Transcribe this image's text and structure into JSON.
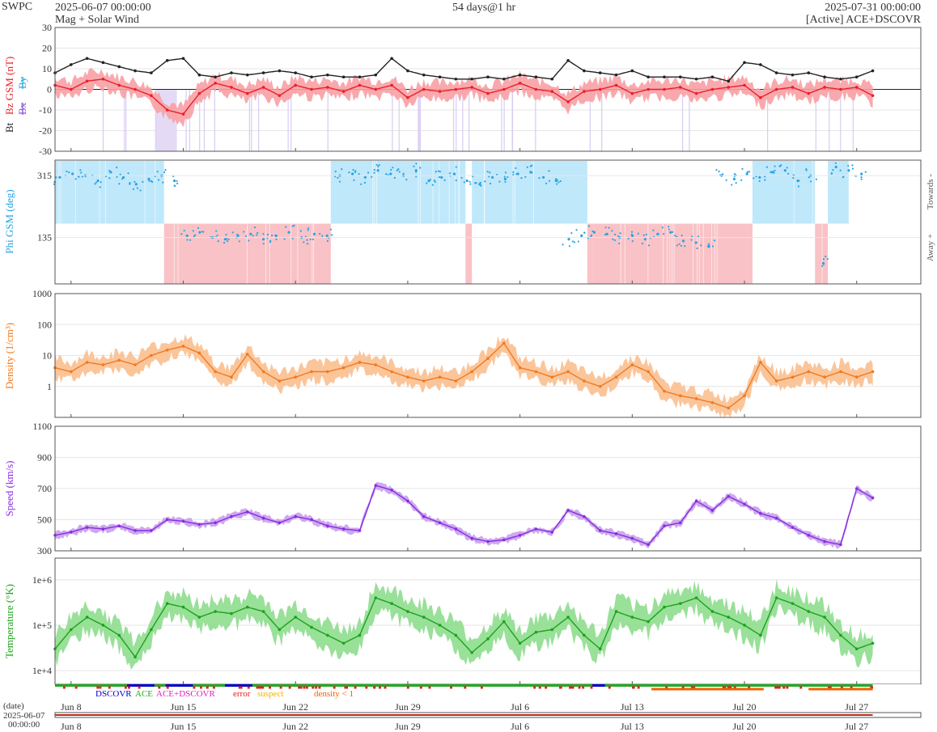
{
  "header": {
    "org": "SWPC",
    "start_time": "2025-06-07 00:00:00",
    "subtitle": "Mag + Solar Wind",
    "span": "54 days@1 hr",
    "end_time": "2025-07-31 00:00:00",
    "source": "[Active] ACE+DSCOVR"
  },
  "colors": {
    "bt": "#222222",
    "bz": "#e8202a",
    "bz_fill": "#f8a0a4",
    "bx": "#8a4fd6",
    "by": "#29a8e0",
    "phi_toward": "#bfe8fb",
    "phi_away": "#f9c2c6",
    "phi_points": "#2aa3e3",
    "density": "#f07a20",
    "density_fill": "#fbbf8f",
    "speed": "#8a2be2",
    "speed_fill": "#c8a0ee",
    "temperature": "#1aa31a",
    "temperature_fill": "#8edd8e",
    "dscovr": "#0000cc",
    "ace": "#22aa22",
    "ace_dscovr": "#e020c0",
    "error": "#e02020",
    "suspect": "#f0b000",
    "density_lt1": "#f06000"
  },
  "chart_data": [
    {
      "type": "line",
      "panel": "mag",
      "ylabel_parts": [
        "Bt",
        "Bz GSM (nT)",
        "Bx",
        "By"
      ],
      "ylim": [
        -30,
        30
      ],
      "yticks": [
        -30,
        -20,
        -10,
        0,
        10,
        20,
        30
      ],
      "x_days": [
        0,
        1,
        2,
        3,
        4,
        5,
        6,
        7,
        8,
        9,
        10,
        11,
        12,
        13,
        14,
        15,
        16,
        17,
        18,
        19,
        20,
        21,
        22,
        23,
        24,
        25,
        26,
        27,
        28,
        29,
        30,
        31,
        32,
        33,
        34,
        35,
        36,
        37,
        38,
        39,
        40,
        41,
        42,
        43,
        44,
        45,
        46,
        47,
        48,
        49,
        50,
        51
      ],
      "series": [
        {
          "name": "Bt",
          "values": [
            8,
            12,
            15,
            13,
            11,
            9,
            8,
            14,
            15,
            7,
            6,
            8,
            7,
            8,
            9,
            8,
            6,
            7,
            6,
            6,
            7,
            15,
            9,
            7,
            6,
            5,
            5,
            6,
            5,
            7,
            6,
            5,
            14,
            9,
            8,
            7,
            9,
            6,
            6,
            6,
            5,
            6,
            4,
            13,
            12,
            8,
            7,
            8,
            6,
            5,
            6,
            9
          ]
        },
        {
          "name": "Bz GSM",
          "values": [
            2,
            0,
            4,
            5,
            2,
            0,
            -3,
            -10,
            -12,
            -2,
            3,
            1,
            -2,
            1,
            -3,
            2,
            0,
            1,
            -1,
            2,
            0,
            2,
            -4,
            0,
            -1,
            0,
            1,
            -2,
            0,
            3,
            0,
            -1,
            -6,
            -1,
            0,
            2,
            -2,
            0,
            0,
            1,
            -2,
            0,
            1,
            2,
            -4,
            0,
            1,
            -2,
            1,
            0,
            1,
            -3
          ]
        }
      ]
    },
    {
      "type": "scatter",
      "panel": "phi",
      "ylabel": "Phi GSM (deg)",
      "right_labels": [
        "Towards -",
        "Away +"
      ],
      "yticks": [
        135,
        315
      ],
      "ylim": [
        0,
        360
      ],
      "sectors": [
        {
          "from": 0,
          "to": 6.8,
          "state": "toward"
        },
        {
          "from": 6.8,
          "to": 17.2,
          "state": "away"
        },
        {
          "from": 17.2,
          "to": 25.6,
          "state": "toward"
        },
        {
          "from": 25.6,
          "to": 26.0,
          "state": "away"
        },
        {
          "from": 26.0,
          "to": 33.2,
          "state": "toward"
        },
        {
          "from": 33.2,
          "to": 33.6,
          "state": "away"
        },
        {
          "from": 33.6,
          "to": 43.5,
          "state": "away"
        },
        {
          "from": 43.5,
          "to": 47.4,
          "state": "toward"
        },
        {
          "from": 47.4,
          "to": 48.2,
          "state": "away"
        },
        {
          "from": 48.2,
          "to": 49.5,
          "state": "toward"
        }
      ],
      "values": [
        310,
        320,
        315,
        300,
        325,
        310,
        290,
        305,
        315,
        300,
        140,
        150,
        135,
        130,
        140,
        145,
        130,
        140,
        150,
        135,
        145,
        140,
        315,
        320,
        310,
        330,
        320,
        315,
        330,
        300,
        310,
        320,
        300,
        290,
        310,
        305,
        320,
        325,
        310,
        300,
        130,
        140,
        150,
        145,
        135,
        140,
        130,
        145,
        150,
        125,
        120,
        110,
        315,
        305,
        320,
        310,
        325,
        330,
        300,
        315,
        60,
        340,
        330,
        320
      ]
    },
    {
      "type": "line",
      "panel": "density",
      "ylabel": "Density (1/cm³)",
      "scale": "log",
      "ylim": [
        0.1,
        1000
      ],
      "yticks": [
        1,
        10,
        100,
        1000
      ],
      "x_days": [
        0,
        1,
        2,
        3,
        4,
        5,
        6,
        7,
        8,
        9,
        10,
        11,
        12,
        13,
        14,
        15,
        16,
        17,
        18,
        19,
        20,
        21,
        22,
        23,
        24,
        25,
        26,
        27,
        28,
        29,
        30,
        31,
        32,
        33,
        34,
        35,
        36,
        37,
        38,
        39,
        40,
        41,
        42,
        43,
        44,
        45,
        46,
        47,
        48,
        49,
        50,
        51
      ],
      "values": [
        4,
        3,
        6,
        5,
        7,
        5,
        10,
        15,
        20,
        12,
        3,
        2,
        11,
        3,
        1.5,
        2,
        3,
        3,
        4,
        6,
        5,
        3,
        2,
        1.5,
        2,
        1.5,
        3,
        8,
        25,
        4,
        3,
        2,
        3,
        1.5,
        1,
        2,
        5,
        3,
        0.7,
        0.5,
        0.4,
        0.3,
        0.2,
        0.5,
        6,
        1.5,
        2,
        3,
        2,
        3,
        2,
        3
      ]
    },
    {
      "type": "line",
      "panel": "speed",
      "ylabel": "Speed (km/s)",
      "ylim": [
        300,
        1100
      ],
      "yticks": [
        300,
        500,
        700,
        900,
        1100
      ],
      "x_days": [
        0,
        1,
        2,
        3,
        4,
        5,
        6,
        7,
        8,
        9,
        10,
        11,
        12,
        13,
        14,
        15,
        16,
        17,
        18,
        19,
        20,
        21,
        22,
        23,
        24,
        25,
        26,
        27,
        28,
        29,
        30,
        31,
        32,
        33,
        34,
        35,
        36,
        37,
        38,
        39,
        40,
        41,
        42,
        43,
        44,
        45,
        46,
        47,
        48,
        49,
        50,
        51
      ],
      "values": [
        400,
        420,
        450,
        440,
        460,
        430,
        430,
        500,
        490,
        470,
        480,
        520,
        550,
        510,
        480,
        520,
        500,
        460,
        440,
        430,
        720,
        690,
        620,
        520,
        480,
        440,
        380,
        360,
        370,
        400,
        440,
        420,
        560,
        520,
        430,
        410,
        380,
        340,
        460,
        480,
        620,
        560,
        650,
        600,
        540,
        510,
        450,
        400,
        360,
        340,
        700,
        640
      ]
    },
    {
      "type": "line",
      "panel": "temperature",
      "ylabel": "Temperature (°K)",
      "scale": "log",
      "ylim": [
        5000,
        3000000
      ],
      "yticks": [
        10000,
        100000,
        1000000
      ],
      "ytick_labels": [
        "1e+4",
        "1e+5",
        "1e+6"
      ],
      "x_days": [
        0,
        1,
        2,
        3,
        4,
        5,
        6,
        7,
        8,
        9,
        10,
        11,
        12,
        13,
        14,
        15,
        16,
        17,
        18,
        19,
        20,
        21,
        22,
        23,
        24,
        25,
        26,
        27,
        28,
        29,
        30,
        31,
        32,
        33,
        34,
        35,
        36,
        37,
        38,
        39,
        40,
        41,
        42,
        43,
        44,
        45,
        46,
        47,
        48,
        49,
        50,
        51
      ],
      "values": [
        30000,
        80000,
        150000,
        100000,
        60000,
        20000,
        80000,
        300000,
        250000,
        150000,
        200000,
        180000,
        250000,
        200000,
        80000,
        150000,
        90000,
        60000,
        40000,
        60000,
        400000,
        300000,
        200000,
        150000,
        100000,
        60000,
        25000,
        50000,
        120000,
        40000,
        70000,
        80000,
        150000,
        60000,
        30000,
        200000,
        150000,
        120000,
        250000,
        300000,
        400000,
        200000,
        150000,
        100000,
        60000,
        400000,
        300000,
        200000,
        150000,
        60000,
        30000,
        40000
      ]
    },
    {
      "type": "table",
      "panel": "legend",
      "entries": [
        "DSCOVR",
        "ACE",
        "ACE+DSCOVR",
        "error",
        "suspect",
        "density < 1"
      ]
    }
  ],
  "xaxis": {
    "label": "(date)",
    "start_label": [
      "2025-06-07",
      "00:00:00"
    ],
    "tick_labels": [
      "Jun 8",
      "Jun 15",
      "Jun 22",
      "Jun 29",
      "Jul 6",
      "Jul 13",
      "Jul 20",
      "Jul 27"
    ],
    "tick_days": [
      1,
      8,
      15,
      22,
      29,
      36,
      43,
      50
    ],
    "span_days": 54
  }
}
